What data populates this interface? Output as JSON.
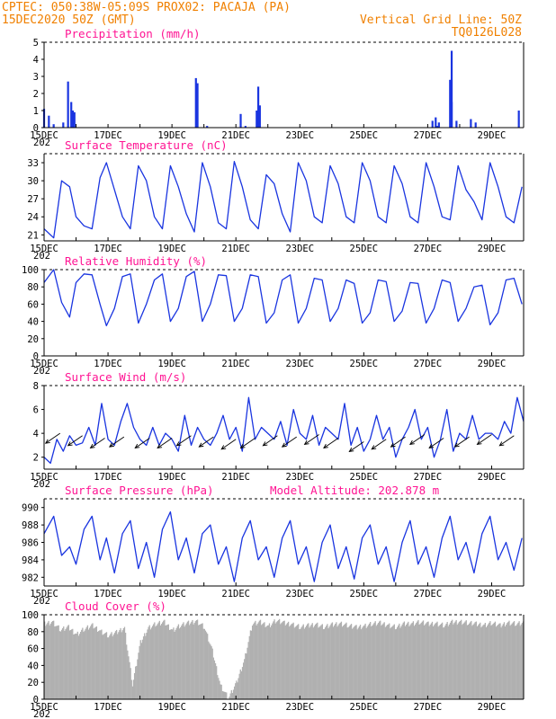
{
  "header": {
    "left1": "CPTEC:   050:38W-05:09S   PROX02: PACAJA (PA)",
    "left2": "15DEC2020 50Z (GMT)",
    "right1": "Vertical Grid Line: 50Z",
    "right2": "TQ0126L028"
  },
  "colors": {
    "header": "#f08000",
    "title": "#ff1493",
    "line": "#1a35e0",
    "cloud": "#b0b0b0",
    "arrow": "#000000"
  },
  "x_tick_labels": [
    "15DEC",
    "17DEC",
    "19DEC",
    "21DEC",
    "23DEC",
    "25DEC",
    "27DEC",
    "29DEC"
  ],
  "x_year_stub": "202",
  "chart_data": [
    {
      "id": "precip",
      "type": "bar",
      "title": "Precipitation (mm/h)",
      "ylim": [
        0,
        5
      ],
      "yticks": [
        0,
        1,
        2,
        3,
        4,
        5
      ],
      "ytick_labels": [
        "0",
        "1",
        "2",
        "3",
        "4",
        "5"
      ],
      "days_range": [
        15,
        30
      ],
      "x_days": [
        15.0,
        15.15,
        15.3,
        15.45,
        15.6,
        15.75,
        15.9,
        16.05,
        16.2,
        16.35,
        16.5,
        16.65,
        16.8,
        16.95,
        17.1,
        17.25,
        17.4,
        17.55,
        17.7,
        17.85,
        18.0,
        18.15,
        18.3,
        18.45,
        18.6,
        18.75,
        18.9,
        19.05,
        19.2,
        19.35,
        19.5,
        19.65,
        19.8,
        19.95,
        20.1,
        20.25,
        20.4,
        20.55,
        20.7,
        20.85,
        21.0,
        21.15,
        21.3,
        21.45,
        21.6,
        21.75,
        21.9,
        22.05,
        22.2,
        22.35,
        22.5,
        22.65,
        22.8,
        22.95,
        23.1,
        23.25,
        23.4,
        23.55,
        23.7,
        23.85,
        24.0,
        24.15,
        24.3,
        24.45,
        24.6,
        24.75,
        24.9,
        25.05,
        25.2,
        25.35,
        25.5,
        25.65,
        25.8,
        25.95,
        26.1,
        26.25,
        26.4,
        26.55,
        26.7,
        26.85,
        27.0,
        27.15,
        27.3,
        27.45,
        27.6,
        27.75,
        27.9,
        28.05,
        28.2,
        28.35,
        28.5,
        28.65,
        28.8,
        28.95,
        29.1,
        29.25,
        29.4,
        29.55,
        29.7,
        29.85
      ],
      "values": [
        1.1,
        0.7,
        0.2,
        0.0,
        0.3,
        2.7,
        1.0,
        0.0,
        0.0,
        0.0,
        0.0,
        0.0,
        0.0,
        0.0,
        0.0,
        0.0,
        0.0,
        0.0,
        0.0,
        0.0,
        0.0,
        0.0,
        0.0,
        0.0,
        0.0,
        0.0,
        0.0,
        0.0,
        0.0,
        0.0,
        0.0,
        0.0,
        0.0,
        0.0,
        0.1,
        0.0,
        0.0,
        0.0,
        0.0,
        0.0,
        0.0,
        0.8,
        0.1,
        0.0,
        0.0,
        0.0,
        0.0,
        0.0,
        0.0,
        0.0,
        0.0,
        0.0,
        0.0,
        0.0,
        0.0,
        0.0,
        0.0,
        0.0,
        0.0,
        0.0,
        0.0,
        0.0,
        0.0,
        0.0,
        0.0,
        0.0,
        0.0,
        0.0,
        0.0,
        0.0,
        0.0,
        0.0,
        0.0,
        0.0,
        0.0,
        0.0,
        0.0,
        0.0,
        0.0,
        0.0,
        0.0,
        0.4,
        0.1,
        0.0,
        0.0,
        4.5,
        0.4,
        0.0,
        0.0,
        0.0,
        0.3,
        0.0,
        0.0,
        0.0,
        0.0,
        0.0,
        0.0,
        0.0,
        0.0,
        1.0
      ],
      "extra_spikes": [
        [
          19.75,
          2.9
        ],
        [
          19.8,
          2.6
        ],
        [
          21.7,
          2.4
        ],
        [
          21.75,
          1.3
        ],
        [
          21.65,
          1.0
        ],
        [
          27.7,
          2.8
        ],
        [
          27.75,
          1.5
        ],
        [
          28.35,
          0.5
        ],
        [
          15.85,
          1.5
        ],
        [
          15.95,
          0.9
        ],
        [
          27.25,
          0.6
        ],
        [
          27.35,
          0.3
        ]
      ]
    },
    {
      "id": "temp",
      "type": "line",
      "title": "Surface Temperature (nC)",
      "ylim": [
        20,
        34.5
      ],
      "yticks": [
        21,
        24,
        27,
        30,
        33
      ],
      "ytick_labels": [
        "21",
        "24",
        "27",
        "30",
        "33"
      ],
      "days_range": [
        15,
        30
      ],
      "x_days": [
        15.0,
        15.3,
        15.55,
        15.8,
        16.0,
        16.25,
        16.5,
        16.75,
        16.95,
        17.2,
        17.45,
        17.7,
        17.95,
        18.2,
        18.45,
        18.7,
        18.95,
        19.2,
        19.45,
        19.7,
        19.95,
        20.2,
        20.45,
        20.7,
        20.95,
        21.2,
        21.45,
        21.7,
        21.95,
        22.2,
        22.45,
        22.7,
        22.95,
        23.2,
        23.45,
        23.7,
        23.95,
        24.2,
        24.45,
        24.7,
        24.95,
        25.2,
        25.45,
        25.7,
        25.95,
        26.2,
        26.45,
        26.7,
        26.95,
        27.2,
        27.45,
        27.7,
        27.95,
        28.2,
        28.45,
        28.7,
        28.95,
        29.2,
        29.45,
        29.7,
        29.95
      ],
      "values": [
        22.0,
        20.5,
        30.0,
        29.0,
        24.0,
        22.5,
        22.0,
        30.5,
        33.0,
        28.5,
        24.0,
        22.0,
        32.5,
        30.0,
        24.0,
        22.0,
        32.5,
        29.0,
        24.5,
        21.5,
        33.0,
        29.0,
        23.0,
        22.0,
        33.2,
        29.0,
        23.5,
        22.0,
        31.0,
        29.5,
        24.5,
        21.5,
        33.0,
        30.0,
        24.0,
        23.0,
        32.5,
        29.5,
        24.0,
        23.0,
        33.0,
        30.0,
        24.0,
        23.0,
        32.5,
        29.5,
        24.0,
        23.0,
        33.0,
        29.0,
        24.0,
        23.5,
        32.5,
        28.5,
        26.5,
        23.5,
        33.0,
        29.0,
        24.0,
        23.0,
        29.0
      ]
    },
    {
      "id": "rh",
      "type": "line",
      "title": "Relative Humidity (%)",
      "ylim": [
        0,
        100
      ],
      "yticks": [
        0,
        20,
        40,
        60,
        80,
        100
      ],
      "ytick_labels": [
        "0",
        "20",
        "40",
        "60",
        "80",
        "100"
      ],
      "days_range": [
        15,
        30
      ],
      "x_days": [
        15.0,
        15.3,
        15.55,
        15.8,
        16.0,
        16.25,
        16.5,
        16.75,
        16.95,
        17.2,
        17.45,
        17.7,
        17.95,
        18.2,
        18.45,
        18.7,
        18.95,
        19.2,
        19.45,
        19.7,
        19.95,
        20.2,
        20.45,
        20.7,
        20.95,
        21.2,
        21.45,
        21.7,
        21.95,
        22.2,
        22.45,
        22.7,
        22.95,
        23.2,
        23.45,
        23.7,
        23.95,
        24.2,
        24.45,
        24.7,
        24.95,
        25.2,
        25.45,
        25.7,
        25.95,
        26.2,
        26.45,
        26.7,
        26.95,
        27.2,
        27.45,
        27.7,
        27.95,
        28.2,
        28.45,
        28.7,
        28.95,
        29.2,
        29.45,
        29.7,
        29.95
      ],
      "values": [
        85.0,
        100.0,
        62.0,
        45.0,
        85.0,
        95.0,
        94.0,
        60.0,
        35.0,
        55.0,
        92.0,
        95.0,
        38.0,
        60.0,
        88.0,
        95.0,
        40.0,
        55.0,
        92.0,
        98.0,
        40.0,
        60.0,
        94.0,
        93.0,
        40.0,
        55.0,
        94.0,
        92.0,
        38.0,
        50.0,
        88.0,
        94.0,
        38.0,
        55.0,
        90.0,
        88.0,
        40.0,
        55.0,
        88.0,
        84.0,
        38.0,
        50.0,
        88.0,
        86.0,
        40.0,
        52.0,
        85.0,
        84.0,
        38.0,
        55.0,
        88.0,
        85.0,
        40.0,
        55.0,
        80.0,
        82.0,
        36.0,
        50.0,
        88.0,
        90.0,
        60.0
      ]
    },
    {
      "id": "wind",
      "type": "line",
      "title": "Surface Wind (m/s)",
      "ylim": [
        1,
        8
      ],
      "yticks": [
        2,
        4,
        6,
        8
      ],
      "ytick_labels": [
        "2",
        "4",
        "6",
        "8"
      ],
      "days_range": [
        15,
        30
      ],
      "x_days": [
        15.0,
        15.2,
        15.4,
        15.6,
        15.8,
        16.0,
        16.2,
        16.4,
        16.6,
        16.8,
        17.0,
        17.2,
        17.4,
        17.6,
        17.8,
        18.0,
        18.2,
        18.4,
        18.6,
        18.8,
        19.0,
        19.2,
        19.4,
        19.6,
        19.8,
        20.0,
        20.2,
        20.4,
        20.6,
        20.8,
        21.0,
        21.2,
        21.4,
        21.6,
        21.8,
        22.0,
        22.2,
        22.4,
        22.6,
        22.8,
        23.0,
        23.2,
        23.4,
        23.6,
        23.8,
        24.0,
        24.2,
        24.4,
        24.6,
        24.8,
        25.0,
        25.2,
        25.4,
        25.6,
        25.8,
        26.0,
        26.2,
        26.4,
        26.6,
        26.8,
        27.0,
        27.2,
        27.4,
        27.6,
        27.8,
        28.0,
        28.2,
        28.4,
        28.6,
        28.8,
        29.0,
        29.2,
        29.4,
        29.6,
        29.8,
        30.0
      ],
      "values": [
        2.0,
        1.5,
        3.5,
        2.5,
        3.8,
        3.0,
        3.2,
        4.5,
        3.0,
        6.5,
        3.5,
        3.0,
        5.0,
        6.5,
        4.5,
        3.5,
        3.0,
        4.5,
        3.0,
        4.0,
        3.5,
        2.5,
        5.5,
        3.0,
        4.5,
        3.5,
        3.0,
        4.0,
        5.5,
        3.5,
        4.5,
        2.5,
        7.0,
        3.5,
        4.5,
        4.0,
        3.5,
        5.0,
        3.0,
        6.0,
        4.0,
        3.5,
        5.5,
        3.0,
        4.5,
        4.0,
        3.5,
        6.5,
        3.0,
        4.5,
        2.5,
        3.5,
        5.5,
        3.5,
        4.5,
        2.0,
        3.5,
        4.5,
        6.0,
        3.5,
        4.5,
        2.0,
        3.5,
        6.0,
        2.5,
        4.0,
        3.5,
        5.5,
        3.5,
        4.0,
        4.0,
        3.5,
        5.0,
        4.0,
        7.0,
        5.0
      ],
      "arrows": [
        [
          15.5,
          4.0
        ],
        [
          16.2,
          3.8
        ],
        [
          16.9,
          3.6
        ],
        [
          17.5,
          3.7
        ],
        [
          18.3,
          3.6
        ],
        [
          19.0,
          3.6
        ],
        [
          19.6,
          3.8
        ],
        [
          20.3,
          3.7
        ],
        [
          21.0,
          3.5
        ],
        [
          21.6,
          3.6
        ],
        [
          22.3,
          3.8
        ],
        [
          22.9,
          3.7
        ],
        [
          23.6,
          3.9
        ],
        [
          24.2,
          3.6
        ],
        [
          25.0,
          3.3
        ],
        [
          25.7,
          3.5
        ],
        [
          26.3,
          3.7
        ],
        [
          26.9,
          3.9
        ],
        [
          27.5,
          3.6
        ],
        [
          28.3,
          3.7
        ],
        [
          29.0,
          3.9
        ],
        [
          29.7,
          3.8
        ]
      ]
    },
    {
      "id": "pres",
      "type": "line",
      "title": "Surface Pressure (hPa)",
      "annotation": "Model Altitude: 202.878  m",
      "ylim": [
        981,
        991
      ],
      "yticks": [
        982,
        984,
        986,
        988,
        990
      ],
      "ytick_labels": [
        "982",
        "984",
        "986",
        "988",
        "990"
      ],
      "days_range": [
        15,
        30
      ],
      "x_days": [
        15.0,
        15.3,
        15.55,
        15.8,
        16.0,
        16.25,
        16.5,
        16.75,
        16.95,
        17.2,
        17.45,
        17.7,
        17.95,
        18.2,
        18.45,
        18.7,
        18.95,
        19.2,
        19.45,
        19.7,
        19.95,
        20.2,
        20.45,
        20.7,
        20.95,
        21.2,
        21.45,
        21.7,
        21.95,
        22.2,
        22.45,
        22.7,
        22.95,
        23.2,
        23.45,
        23.7,
        23.95,
        24.2,
        24.45,
        24.7,
        24.95,
        25.2,
        25.45,
        25.7,
        25.95,
        26.2,
        26.45,
        26.7,
        26.95,
        27.2,
        27.45,
        27.7,
        27.95,
        28.2,
        28.45,
        28.7,
        28.95,
        29.2,
        29.45,
        29.7,
        29.95
      ],
      "values": [
        987.0,
        989.0,
        984.5,
        985.5,
        983.5,
        987.5,
        989.0,
        984.0,
        986.5,
        982.5,
        987.0,
        988.5,
        983.0,
        986.0,
        982.0,
        987.5,
        989.5,
        984.0,
        986.5,
        982.5,
        987.0,
        988.0,
        983.5,
        985.5,
        981.5,
        986.5,
        988.5,
        984.0,
        985.5,
        982.0,
        986.5,
        988.5,
        983.5,
        985.5,
        981.5,
        986.0,
        988.0,
        983.0,
        985.5,
        981.8,
        986.5,
        988.0,
        983.5,
        985.5,
        981.5,
        986.0,
        988.5,
        983.5,
        985.5,
        982.0,
        986.5,
        989.0,
        984.0,
        986.0,
        982.5,
        987.0,
        989.0,
        984.0,
        986.0,
        982.8,
        986.5
      ]
    },
    {
      "id": "cloud",
      "type": "area",
      "title": "Cloud Cover (%)",
      "ylim": [
        0,
        100
      ],
      "yticks": [
        0,
        20,
        40,
        60,
        80,
        100
      ],
      "ytick_labels": [
        "0",
        "20",
        "40",
        "60",
        "80",
        "100"
      ],
      "days_range": [
        15,
        30
      ],
      "x_days": [
        15.0,
        15.25,
        15.5,
        15.75,
        16.0,
        16.25,
        16.5,
        16.75,
        17.0,
        17.25,
        17.5,
        17.75,
        18.0,
        18.25,
        18.5,
        18.75,
        19.0,
        19.25,
        19.5,
        19.75,
        20.0,
        20.25,
        20.5,
        20.75,
        21.0,
        21.25,
        21.5,
        21.75,
        22.0,
        22.25,
        22.5,
        22.75,
        23.0,
        23.25,
        23.5,
        23.75,
        24.0,
        24.25,
        24.5,
        24.75,
        25.0,
        25.25,
        25.5,
        25.75,
        26.0,
        26.25,
        26.5,
        26.75,
        27.0,
        27.25,
        27.5,
        27.75,
        28.0,
        28.25,
        28.5,
        28.75,
        29.0,
        29.25,
        29.5,
        29.75,
        30.0
      ],
      "values": [
        92,
        95,
        85,
        88,
        80,
        86,
        90,
        84,
        78,
        82,
        88,
        20,
        70,
        88,
        92,
        94,
        85,
        90,
        93,
        96,
        88,
        60,
        20,
        4,
        22,
        50,
        92,
        94,
        90,
        96,
        93,
        92,
        88,
        90,
        92,
        88,
        91,
        93,
        90,
        88,
        90,
        92,
        93,
        91,
        88,
        92,
        93,
        94,
        92,
        93,
        90,
        94,
        95,
        93,
        92,
        91,
        93,
        90,
        94,
        92,
        93
      ]
    }
  ]
}
